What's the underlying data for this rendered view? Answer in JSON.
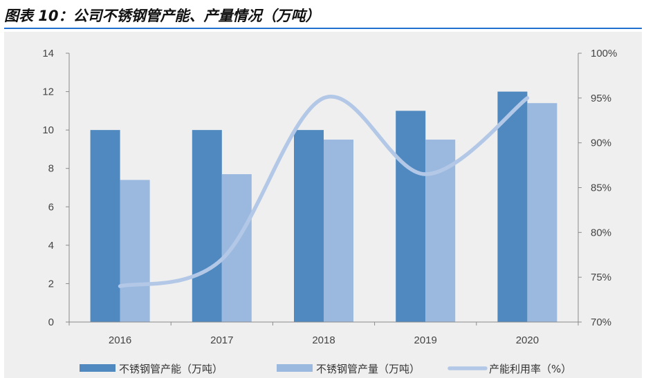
{
  "figure_title": "图表 10：公司不锈钢管产能、产量情况（万吨）",
  "colors": {
    "capacity": "#4f89c0",
    "production": "#9bb9df",
    "utilization": "#b3c8e6",
    "title_rule": "#1f6fd0",
    "background": "#efefef"
  },
  "chart_data": {
    "type": "bar",
    "categories": [
      "2016",
      "2017",
      "2018",
      "2019",
      "2020"
    ],
    "series": [
      {
        "name": "不锈钢管产能（万吨）",
        "type": "bar",
        "axis": "left",
        "values": [
          10,
          10,
          10,
          11,
          12
        ]
      },
      {
        "name": "不锈钢管产量（万吨）",
        "type": "bar",
        "axis": "left",
        "values": [
          7.4,
          7.7,
          9.5,
          9.5,
          11.4
        ]
      },
      {
        "name": "产能利用率（%）",
        "type": "line",
        "smooth": true,
        "axis": "right",
        "values": [
          74,
          77,
          95,
          86.5,
          95
        ]
      }
    ],
    "ylim": [
      0,
      14
    ],
    "yticks": [
      "0",
      "2",
      "4",
      "6",
      "8",
      "10",
      "12",
      "14"
    ],
    "y2lim": [
      70,
      100
    ],
    "y2ticks": [
      "70%",
      "75%",
      "80%",
      "85%",
      "90%",
      "95%",
      "100%"
    ],
    "legend_position": "bottom",
    "grid": false
  }
}
